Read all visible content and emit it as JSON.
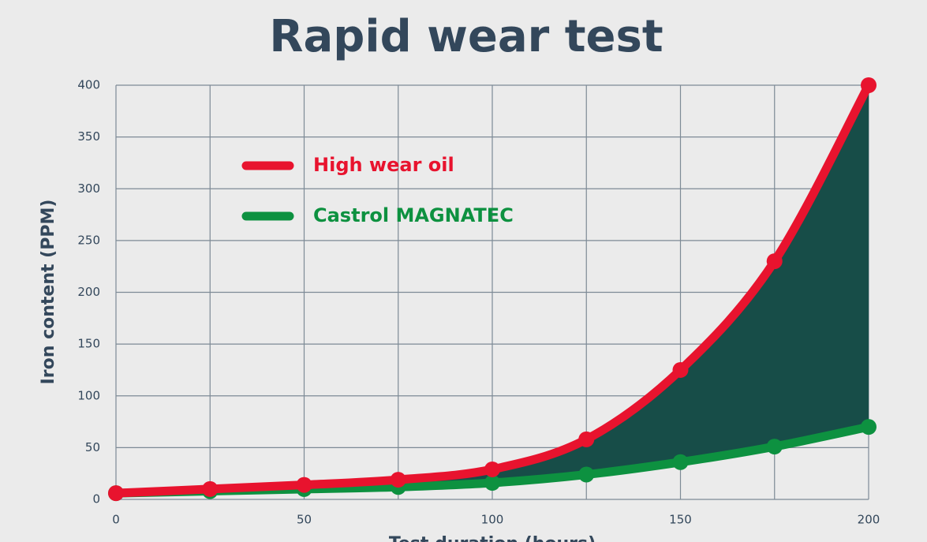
{
  "chart_data": {
    "type": "line",
    "title": "Rapid wear test",
    "x_label": "Test duration (hours)",
    "y_label": "Iron content (PPM)",
    "x": [
      0,
      25,
      50,
      75,
      100,
      125,
      150,
      175,
      200
    ],
    "series": [
      {
        "name": "High wear oil",
        "color": "#e8132e",
        "values": [
          6,
          10,
          14,
          19,
          29,
          58,
          125,
          230,
          400
        ]
      },
      {
        "name": "Castrol MAGNATEC",
        "color": "#0d9140",
        "values": [
          6,
          8,
          10,
          12,
          16,
          24,
          36,
          51,
          70
        ]
      }
    ],
    "fill_between_color": "#174d48",
    "xlim": [
      0,
      200
    ],
    "xticks": [
      0,
      50,
      100,
      150,
      200
    ],
    "xminor": [
      25,
      75,
      125,
      175
    ],
    "ylim": [
      0,
      400
    ],
    "yticks": [
      0,
      50,
      100,
      150,
      200,
      250,
      300,
      350,
      400
    ],
    "grid": true,
    "legend": "upper-left"
  }
}
